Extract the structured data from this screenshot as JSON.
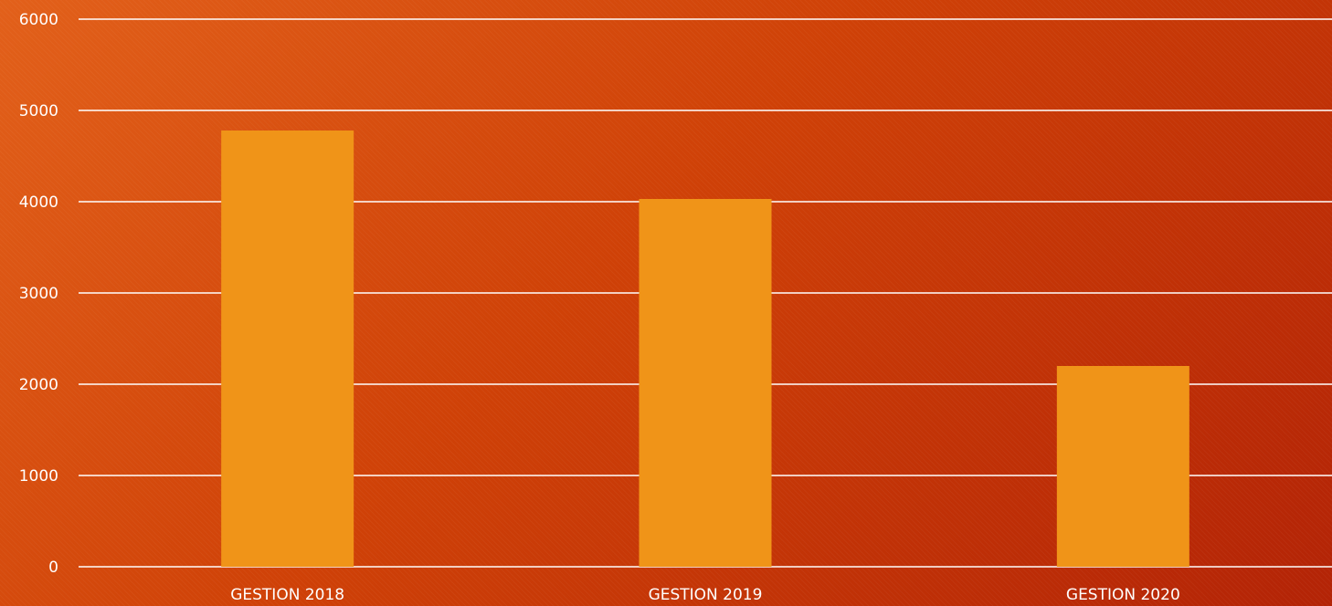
{
  "chart_data": {
    "type": "bar",
    "title": "",
    "xlabel": "",
    "ylabel": "",
    "categories": [
      "GESTION 2018",
      "GESTION 2019",
      "GESTION 2020"
    ],
    "values": [
      4780,
      4030,
      2200
    ],
    "ylim": [
      0,
      6000
    ],
    "yticks": [
      0,
      1000,
      2000,
      3000,
      4000,
      5000,
      6000
    ],
    "grid": true,
    "legend": "none",
    "colors": {
      "bar": "#f09418",
      "grid": "#ffffff",
      "text": "#ffffff",
      "background_start": "#e2601a",
      "background_end": "#b32306"
    }
  }
}
